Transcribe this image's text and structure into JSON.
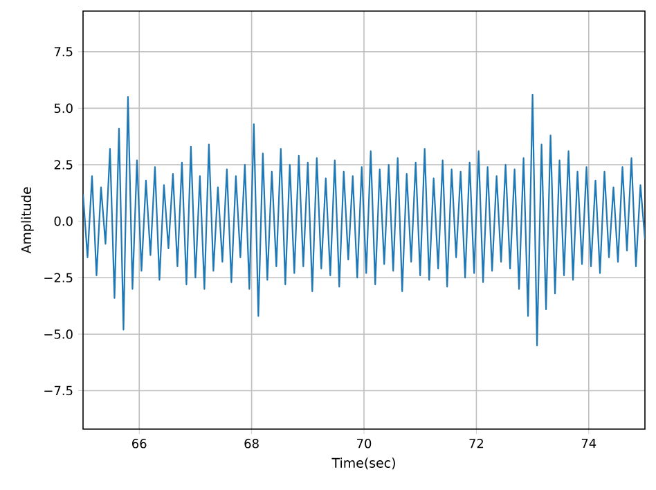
{
  "chart_data": {
    "type": "line",
    "xlabel": "Time(sec)",
    "ylabel": "Amplitude",
    "xlim": [
      65,
      75
    ],
    "ylim": [
      -9.2,
      9.3
    ],
    "xticks": [
      66,
      68,
      70,
      72,
      74
    ],
    "yticks": [
      {
        "value": -7.5,
        "label": "−7.5"
      },
      {
        "value": -5,
        "label": "−5.0"
      },
      {
        "value": -2.5,
        "label": "−2.5"
      },
      {
        "value": 0,
        "label": "0.0"
      },
      {
        "value": 2.5,
        "label": "2.5"
      },
      {
        "value": 5,
        "label": "5.0"
      },
      {
        "value": 7.5,
        "label": "7.5"
      }
    ],
    "grid": true,
    "marker": "none",
    "line_style": "solid",
    "x": [
      65.0,
      65.08,
      65.16,
      65.24,
      65.32,
      65.4,
      65.48,
      65.56,
      65.64,
      65.72,
      65.8,
      65.88,
      65.96,
      66.04,
      66.12,
      66.2,
      66.28,
      66.36,
      66.44,
      66.52,
      66.6,
      66.68,
      66.76,
      66.84,
      66.92,
      67.0,
      67.08,
      67.16,
      67.24,
      67.32,
      67.4,
      67.48,
      67.56,
      67.64,
      67.72,
      67.8,
      67.88,
      67.96,
      68.04,
      68.12,
      68.2,
      68.28,
      68.36,
      68.44,
      68.52,
      68.6,
      68.68,
      68.76,
      68.84,
      68.92,
      69.0,
      69.08,
      69.16,
      69.24,
      69.32,
      69.4,
      69.48,
      69.56,
      69.64,
      69.72,
      69.8,
      69.88,
      69.96,
      70.04,
      70.12,
      70.2,
      70.28,
      70.36,
      70.44,
      70.52,
      70.6,
      70.68,
      70.76,
      70.84,
      70.92,
      71.0,
      71.08,
      71.16,
      71.24,
      71.32,
      71.4,
      71.48,
      71.56,
      71.64,
      71.72,
      71.8,
      71.88,
      71.96,
      72.04,
      72.12,
      72.2,
      72.28,
      72.36,
      72.44,
      72.52,
      72.6,
      72.68,
      72.76,
      72.84,
      72.92,
      73.0,
      73.08,
      73.16,
      73.24,
      73.32,
      73.4,
      73.48,
      73.56,
      73.64,
      73.72,
      73.8,
      73.88,
      73.96,
      74.04,
      74.12,
      74.2,
      74.28,
      74.36,
      74.44,
      74.52,
      74.6,
      74.68,
      74.76,
      74.84,
      74.92,
      75.0
    ],
    "series": [
      {
        "color": "#1f77b4",
        "values": [
          1.2,
          -1.6,
          2.0,
          -2.4,
          1.5,
          -1.0,
          3.2,
          -3.4,
          4.1,
          -4.8,
          5.5,
          -3.0,
          2.7,
          -2.2,
          1.8,
          -1.5,
          2.4,
          -2.6,
          1.6,
          -1.2,
          2.1,
          -2.0,
          2.6,
          -2.8,
          3.3,
          -2.5,
          2.0,
          -3.0,
          3.4,
          -2.2,
          1.5,
          -1.8,
          2.3,
          -2.7,
          2.0,
          -1.6,
          2.5,
          -3.0,
          4.3,
          -4.2,
          3.0,
          -2.6,
          2.2,
          -2.0,
          3.2,
          -2.8,
          2.5,
          -2.3,
          2.9,
          -2.0,
          2.6,
          -3.1,
          2.8,
          -2.1,
          1.9,
          -2.4,
          2.7,
          -2.9,
          2.2,
          -1.7,
          2.0,
          -2.5,
          2.4,
          -2.3,
          3.1,
          -2.8,
          2.3,
          -1.9,
          2.5,
          -2.2,
          2.8,
          -3.1,
          2.1,
          -1.8,
          2.6,
          -2.4,
          3.2,
          -2.6,
          1.9,
          -2.1,
          2.7,
          -2.9,
          2.3,
          -1.6,
          2.2,
          -2.5,
          2.6,
          -2.3,
          3.1,
          -2.7,
          2.4,
          -2.2,
          2.0,
          -1.8,
          2.5,
          -2.1,
          2.3,
          -3.0,
          2.8,
          -4.2,
          5.6,
          -5.5,
          3.4,
          -3.9,
          3.8,
          -3.2,
          2.7,
          -2.4,
          3.1,
          -2.6,
          2.2,
          -1.9,
          2.4,
          -2.0,
          1.8,
          -2.3,
          2.2,
          -1.6,
          1.5,
          -1.8,
          2.4,
          -1.3,
          2.8,
          -2.0,
          1.6,
          -0.8
        ]
      }
    ]
  }
}
